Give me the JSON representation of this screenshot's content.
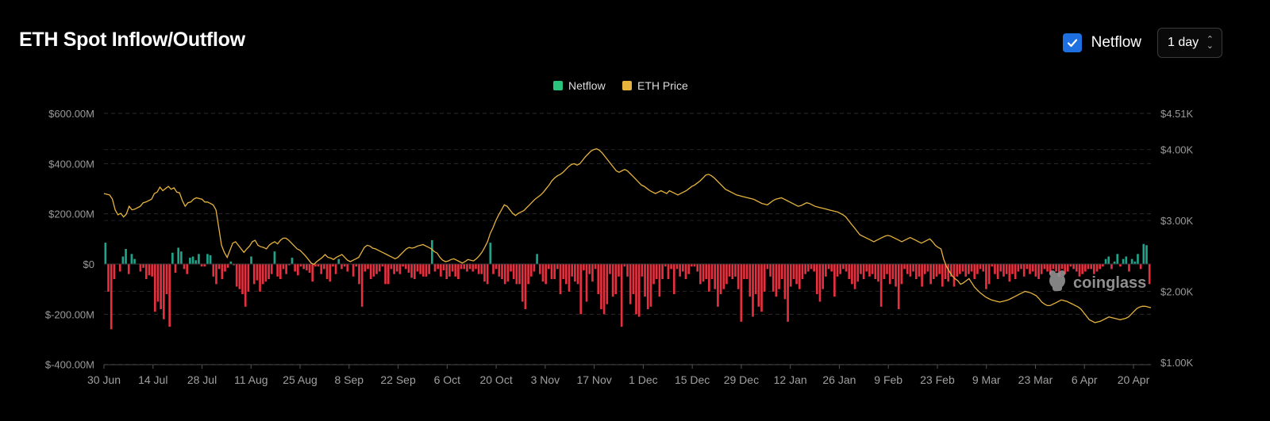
{
  "header": {
    "title": "ETH Spot Inflow/Outflow",
    "toggle_label": "Netflow",
    "interval": "1 day"
  },
  "watermark": "coinglass",
  "colors": {
    "positive": "#1ea48a",
    "negative": "#e5303f",
    "legend_netflow": "#2bc27c",
    "price": "#e6b33e",
    "checkbox": "#1e6fe0"
  },
  "chart_data": {
    "type": "bar",
    "title": "ETH Spot Inflow/Outflow",
    "legend": [
      "Netflow",
      "ETH Price"
    ],
    "legend_position": "top-center",
    "grid": true,
    "x_ticks": [
      "30 Jun",
      "14 Jul",
      "28 Jul",
      "11 Aug",
      "25 Aug",
      "8 Sep",
      "22 Sep",
      "6 Oct",
      "20 Oct",
      "3 Nov",
      "17 Nov",
      "1 Dec",
      "15 Dec",
      "29 Dec",
      "12 Jan",
      "26 Jan",
      "9 Feb",
      "23 Feb",
      "9 Mar",
      "23 Mar",
      "6 Apr",
      "20 Apr"
    ],
    "y_left": {
      "ticks": [
        "$600.00M",
        "$400.00M",
        "$200.00M",
        "$0",
        "$-200.00M",
        "$-400.00M"
      ],
      "range": [
        -400,
        600
      ],
      "unit": "M USD"
    },
    "y_right": {
      "ticks": [
        "$4.51K",
        "$4.00K",
        "$3.00K",
        "$2.00K",
        "$1.00K"
      ],
      "range": [
        1000,
        4510
      ],
      "unit": "USD"
    },
    "series": [
      {
        "name": "Netflow",
        "type": "bar",
        "unit": "M USD",
        "values": [
          85,
          -110,
          -260,
          -60,
          0,
          -30,
          30,
          60,
          -40,
          40,
          20,
          0,
          -30,
          -15,
          -60,
          -45,
          -50,
          -190,
          -150,
          -180,
          -220,
          -120,
          -250,
          45,
          -35,
          65,
          50,
          -20,
          -40,
          25,
          30,
          15,
          40,
          -10,
          -10,
          40,
          35,
          -50,
          -80,
          -20,
          -60,
          -30,
          -15,
          10,
          -5,
          -90,
          -100,
          -120,
          -170,
          -110,
          30,
          -80,
          -65,
          -110,
          -80,
          -70,
          -60,
          -40,
          50,
          -50,
          -60,
          -20,
          -40,
          -5,
          25,
          -30,
          -45,
          -10,
          -20,
          -25,
          -35,
          -70,
          -10,
          -10,
          -40,
          -20,
          -60,
          -70,
          -10,
          -40,
          20,
          -20,
          -10,
          -30,
          0,
          -50,
          -10,
          -80,
          -170,
          -30,
          -20,
          -60,
          -50,
          -40,
          -30,
          -10,
          -80,
          -80,
          -20,
          -40,
          -30,
          -40,
          -10,
          -20,
          -35,
          -55,
          -60,
          -30,
          -40,
          -50,
          -50,
          -40,
          95,
          -30,
          -20,
          -50,
          -25,
          -60,
          -50,
          -30,
          -50,
          -60,
          -20,
          -20,
          -30,
          -20,
          -30,
          -20,
          -40,
          -40,
          -70,
          -80,
          85,
          -40,
          -20,
          -50,
          -60,
          -80,
          -70,
          -30,
          -60,
          -80,
          -80,
          -150,
          -180,
          -80,
          -50,
          -30,
          40,
          -40,
          -70,
          -80,
          -20,
          -60,
          -60,
          -20,
          -120,
          -60,
          -80,
          -110,
          -50,
          -70,
          -80,
          -200,
          -25,
          -150,
          -40,
          -70,
          -20,
          -120,
          -180,
          -200,
          -160,
          -40,
          -130,
          -120,
          -50,
          -250,
          -10,
          -50,
          -160,
          -120,
          -200,
          -210,
          -50,
          -130,
          -180,
          -170,
          -80,
          -60,
          -130,
          -60,
          -10,
          -60,
          -20,
          -120,
          -20,
          -50,
          -30,
          -60,
          -40,
          -10,
          -10,
          -30,
          -80,
          -70,
          -60,
          -110,
          -60,
          -100,
          -170,
          -120,
          -100,
          -80,
          -50,
          -60,
          -50,
          -100,
          -230,
          -60,
          -60,
          -130,
          -210,
          -120,
          -170,
          -190,
          -110,
          -20,
          -50,
          -110,
          -130,
          -100,
          -60,
          -140,
          -230,
          -90,
          -60,
          -80,
          -100,
          -60,
          -40,
          -30,
          -20,
          -30,
          -120,
          -150,
          -100,
          -50,
          -20,
          -30,
          -130,
          -50,
          -40,
          -20,
          -30,
          -60,
          -80,
          -100,
          -70,
          -40,
          -60,
          -30,
          -50,
          -40,
          -60,
          -70,
          -170,
          -60,
          -40,
          -80,
          -60,
          -90,
          -180,
          -80,
          -20,
          -40,
          -50,
          -30,
          -60,
          -50,
          -90,
          -40,
          -30,
          -80,
          -60,
          -50,
          -40,
          -90,
          -60,
          -70,
          -50,
          -90,
          -50,
          -40,
          -30,
          -50,
          -40,
          -30,
          -60,
          -40,
          -20,
          -30,
          -100,
          -80,
          -10,
          -40,
          -60,
          -30,
          -50,
          -40,
          -70,
          -40,
          -60,
          -30,
          -20,
          -50,
          -20,
          -40,
          -30,
          -50,
          -60,
          -40,
          -20,
          -30,
          -40,
          -20,
          -30,
          -50,
          -20,
          -40,
          -30,
          -10,
          -20,
          -30,
          -50,
          -40,
          -30,
          -20,
          -20,
          -40,
          -30,
          -20,
          -10,
          20,
          30,
          -20,
          10,
          40,
          -10,
          20,
          30,
          -30,
          20,
          10,
          40,
          -20,
          80,
          75,
          -80
        ]
      },
      {
        "name": "ETH Price",
        "type": "line",
        "unit": "USD",
        "values": [
          3380,
          3370,
          3360,
          3300,
          3150,
          3080,
          3100,
          3050,
          3090,
          3200,
          3150,
          3160,
          3180,
          3200,
          3250,
          3260,
          3280,
          3300,
          3380,
          3400,
          3470,
          3420,
          3450,
          3480,
          3440,
          3460,
          3400,
          3390,
          3280,
          3200,
          3250,
          3260,
          3300,
          3320,
          3310,
          3300,
          3260,
          3260,
          3240,
          3220,
          3150,
          2900,
          2650,
          2550,
          2480,
          2580,
          2680,
          2700,
          2650,
          2600,
          2550,
          2600,
          2640,
          2700,
          2720,
          2650,
          2630,
          2620,
          2600,
          2650,
          2680,
          2700,
          2670,
          2720,
          2750,
          2750,
          2720,
          2680,
          2640,
          2600,
          2580,
          2540,
          2500,
          2450,
          2400,
          2380,
          2420,
          2450,
          2480,
          2520,
          2480,
          2470,
          2450,
          2480,
          2500,
          2520,
          2480,
          2440,
          2420,
          2440,
          2460,
          2480,
          2550,
          2620,
          2650,
          2640,
          2610,
          2600,
          2580,
          2560,
          2540,
          2520,
          2500,
          2480,
          2460,
          2480,
          2520,
          2560,
          2600,
          2620,
          2610,
          2620,
          2640,
          2650,
          2660,
          2640,
          2620,
          2600,
          2560,
          2540,
          2480,
          2440,
          2420,
          2430,
          2450,
          2460,
          2440,
          2420,
          2400,
          2420,
          2450,
          2440,
          2430,
          2460,
          2500,
          2550,
          2620,
          2700,
          2820,
          2900,
          3000,
          3080,
          3150,
          3220,
          3200,
          3150,
          3100,
          3070,
          3100,
          3120,
          3140,
          3180,
          3220,
          3260,
          3300,
          3330,
          3360,
          3400,
          3450,
          3500,
          3560,
          3600,
          3630,
          3650,
          3680,
          3720,
          3760,
          3790,
          3800,
          3780,
          3800,
          3850,
          3900,
          3940,
          3980,
          4000,
          4010,
          3990,
          3950,
          3900,
          3850,
          3800,
          3750,
          3700,
          3680,
          3700,
          3720,
          3700,
          3660,
          3620,
          3580,
          3540,
          3500,
          3480,
          3450,
          3420,
          3400,
          3380,
          3400,
          3420,
          3400,
          3380,
          3420,
          3400,
          3380,
          3360,
          3380,
          3400,
          3420,
          3450,
          3480,
          3500,
          3530,
          3560,
          3600,
          3640,
          3650,
          3630,
          3600,
          3560,
          3520,
          3480,
          3440,
          3420,
          3400,
          3380,
          3360,
          3350,
          3340,
          3330,
          3320,
          3310,
          3300,
          3280,
          3260,
          3240,
          3230,
          3220,
          3250,
          3280,
          3300,
          3310,
          3320,
          3300,
          3280,
          3260,
          3240,
          3220,
          3200,
          3210,
          3230,
          3250,
          3240,
          3220,
          3200,
          3190,
          3180,
          3170,
          3160,
          3150,
          3140,
          3130,
          3120,
          3100,
          3080,
          3050,
          3000,
          2950,
          2900,
          2850,
          2800,
          2780,
          2760,
          2740,
          2720,
          2700,
          2720,
          2740,
          2760,
          2780,
          2790,
          2780,
          2760,
          2740,
          2720,
          2700,
          2720,
          2740,
          2760,
          2740,
          2720,
          2700,
          2680,
          2700,
          2720,
          2740,
          2700,
          2650,
          2620,
          2600,
          2450,
          2350,
          2280,
          2220,
          2180,
          2150,
          2100,
          2120,
          2150,
          2180,
          2120,
          2060,
          2020,
          1980,
          1950,
          1920,
          1900,
          1880,
          1870,
          1860,
          1850,
          1860,
          1870,
          1880,
          1900,
          1920,
          1940,
          1960,
          1980,
          2000,
          1990,
          1980,
          1960,
          1940,
          1900,
          1850,
          1820,
          1800,
          1800,
          1820,
          1840,
          1860,
          1880,
          1870,
          1860,
          1840,
          1820,
          1800,
          1780,
          1750,
          1700,
          1650,
          1600,
          1580,
          1560,
          1570,
          1580,
          1600,
          1620,
          1640,
          1630,
          1620,
          1610,
          1600,
          1610,
          1620,
          1640,
          1680,
          1720,
          1760,
          1780,
          1790,
          1790,
          1780,
          1770
        ]
      }
    ]
  }
}
